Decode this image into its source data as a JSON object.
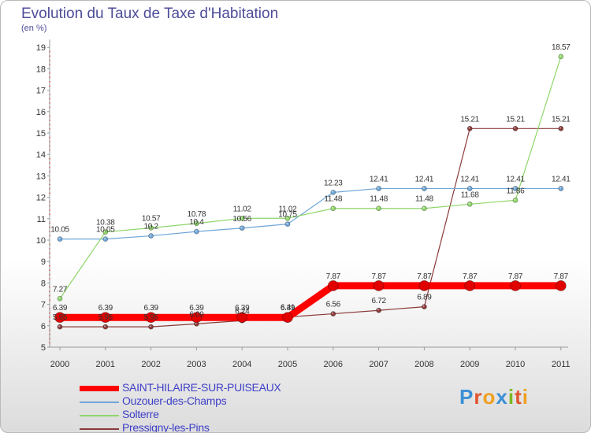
{
  "header": {
    "title": "Evolution du Taux de Taxe d'Habitation",
    "subtitle": "(en %)"
  },
  "logo": {
    "text": "Proxiti",
    "letter_colors": [
      "#3b8fd6",
      "#e0552e",
      "#f0a020",
      "#3b8fd6",
      "#7ab820",
      "#e0552e",
      "#f0a020"
    ]
  },
  "chart_data": {
    "type": "line",
    "x": [
      "2000",
      "2001",
      "2002",
      "2003",
      "2004",
      "2005",
      "2006",
      "2007",
      "2008",
      "2009",
      "2010",
      "2011"
    ],
    "ylim": [
      5,
      19
    ],
    "yticks": [
      "5",
      "6",
      "7",
      "8",
      "9",
      "10",
      "11",
      "12",
      "13",
      "14",
      "15",
      "16",
      "17",
      "18",
      "19"
    ],
    "grid": false,
    "legend_position": "bottom-left",
    "series": [
      {
        "name": "SAINT-HILAIRE-SUR-PUISEAUX",
        "color": "#ff0000",
        "width": 9,
        "values": [
          6.39,
          6.39,
          6.39,
          6.39,
          6.39,
          6.39,
          7.87,
          7.87,
          7.87,
          7.87,
          7.87,
          7.87
        ],
        "labels": [
          "6.39",
          "6.39",
          "6.39",
          "6.39",
          "6.39",
          "6.39",
          "7.87",
          "7.87",
          "7.87",
          "7.87",
          "7.87",
          "7.87"
        ]
      },
      {
        "name": "Ouzouer-des-Champs",
        "color": "#6fa6d8",
        "width": 1.2,
        "values": [
          10.05,
          10.05,
          10.2,
          10.4,
          10.56,
          10.75,
          12.23,
          12.41,
          12.41,
          12.41,
          12.41,
          12.41
        ],
        "labels": [
          "10.05",
          "10.05",
          "10.2",
          "10.4",
          "10.56",
          "10.75",
          "12.23",
          "12.41",
          "12.41",
          "12.41",
          "12.41",
          "12.41"
        ]
      },
      {
        "name": "Solterre",
        "color": "#8fd66a",
        "width": 1.2,
        "values": [
          7.27,
          10.38,
          10.57,
          10.78,
          11.02,
          11.02,
          11.48,
          11.48,
          11.48,
          11.68,
          11.86,
          18.57
        ],
        "labels": [
          "7.27",
          "10.38",
          "10.57",
          "10.78",
          "11.02",
          "11.02",
          "11.48",
          "11.48",
          "11.48",
          "11.68",
          "11.86",
          "18.57"
        ]
      },
      {
        "name": "Pressigny-les-Pins",
        "color": "#8b3a3a",
        "width": 1.2,
        "values": [
          5.95,
          5.95,
          5.95,
          6.09,
          6.24,
          6.41,
          6.56,
          6.72,
          6.89,
          15.21,
          15.21,
          15.21
        ],
        "labels": [
          "5.95",
          "5.95",
          "5.95",
          "6.09",
          "6.24",
          "6.41",
          "6.56",
          "6.72",
          "6.89",
          "15.21",
          "15.21",
          "15.21"
        ]
      }
    ]
  }
}
